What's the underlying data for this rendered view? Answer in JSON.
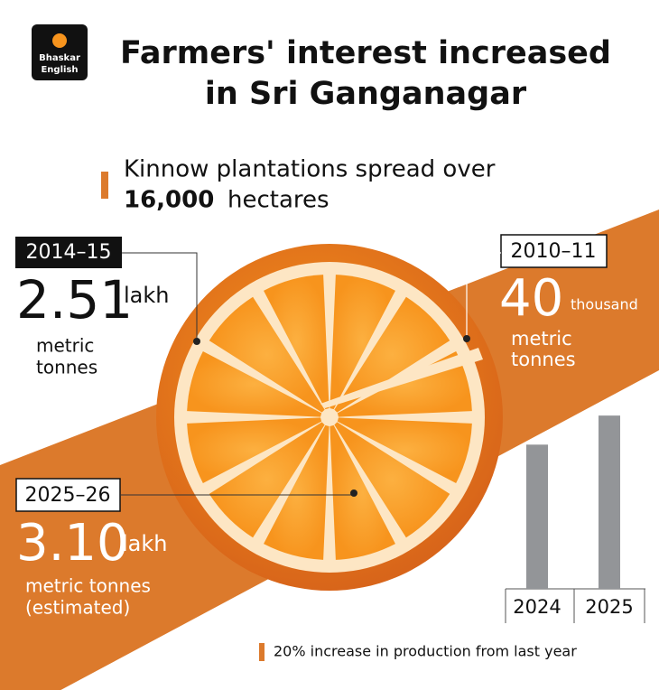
{
  "logo": {
    "line1": "Bhaskar",
    "line2": "English"
  },
  "title": [
    "Farmers' interest increased",
    "in Sri Ganganagar"
  ],
  "subtitle": {
    "text": "Kinnow plantations spread over",
    "highlight": "16,000",
    "unit": "hectares"
  },
  "callouts": [
    {
      "period": "2014–15",
      "value": "2.51",
      "unit": "lakh",
      "note": [
        "metric",
        "tonnes"
      ]
    },
    {
      "period": "2010–11",
      "value": "40",
      "unit": "thousand",
      "note": [
        "metric",
        "tonnes"
      ]
    },
    {
      "period": "2025–26",
      "value": "3.10",
      "unit": "lakh",
      "note": [
        "metric tonnes",
        "(estimated)"
      ]
    }
  ],
  "chart_data": {
    "type": "bar",
    "categories": [
      "2024",
      "2025"
    ],
    "values": [
      2.58,
      3.1
    ],
    "color": "#939598",
    "ylim": [
      0,
      3.7
    ]
  },
  "footnote": "20% increase in production from last year"
}
